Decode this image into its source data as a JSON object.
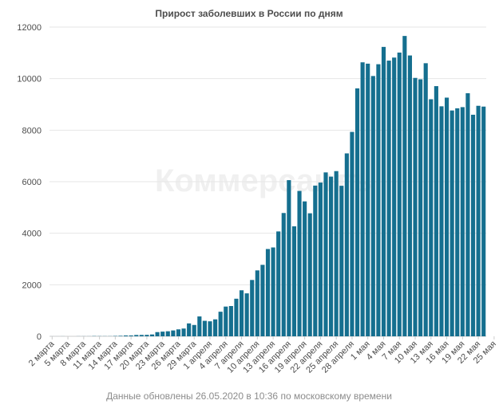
{
  "chart_data": {
    "type": "bar",
    "title": "Прирост заболевших в России по дням",
    "footer": "Данные обновлены 26.05.2020 в 10:36 по московскому времени",
    "watermark": "Коммерсантъ",
    "xlabel": "",
    "ylabel": "",
    "ylim": [
      0,
      12000
    ],
    "yticks": [
      0,
      2000,
      4000,
      6000,
      8000,
      10000,
      12000
    ],
    "grid": true,
    "bar_color": "#156f8f",
    "xtick_labels": [
      "2 марта",
      "5 марта",
      "8 марта",
      "11 марта",
      "14 марта",
      "17 марта",
      "20 марта",
      "23 марта",
      "26 марта",
      "29 марта",
      "1 апреля",
      "4 апреля",
      "7 апреля",
      "10 апреля",
      "13 апреля",
      "16 апреля",
      "19 апреля",
      "22 апреля",
      "25 апреля",
      "28 апреля",
      "1 мая",
      "4 мая",
      "7 мая",
      "10 мая",
      "13 мая",
      "16 мая",
      "19 мая",
      "22 мая",
      "25 мая"
    ],
    "values": [
      1,
      1,
      2,
      0,
      0,
      3,
      3,
      3,
      10,
      7,
      6,
      6,
      14,
      20,
      33,
      34,
      52,
      54,
      57,
      71,
      163,
      182,
      196,
      228,
      270,
      302,
      501,
      440,
      771,
      601,
      582,
      658,
      954,
      1154,
      1175,
      1459,
      1786,
      1667,
      2186,
      2558,
      2774,
      3388,
      3448,
      4070,
      4785,
      6060,
      4268,
      5642,
      5236,
      4774,
      5849,
      5966,
      6361,
      6198,
      6411,
      5841,
      7099,
      7933,
      9623,
      10633,
      10581,
      10102,
      10559,
      11231,
      10699,
      10817,
      11012,
      11656,
      10899,
      10028,
      9974,
      10598,
      9200,
      9709,
      8926,
      9263,
      8764,
      8849,
      8894,
      9434,
      8599,
      8946,
      8915
    ]
  }
}
